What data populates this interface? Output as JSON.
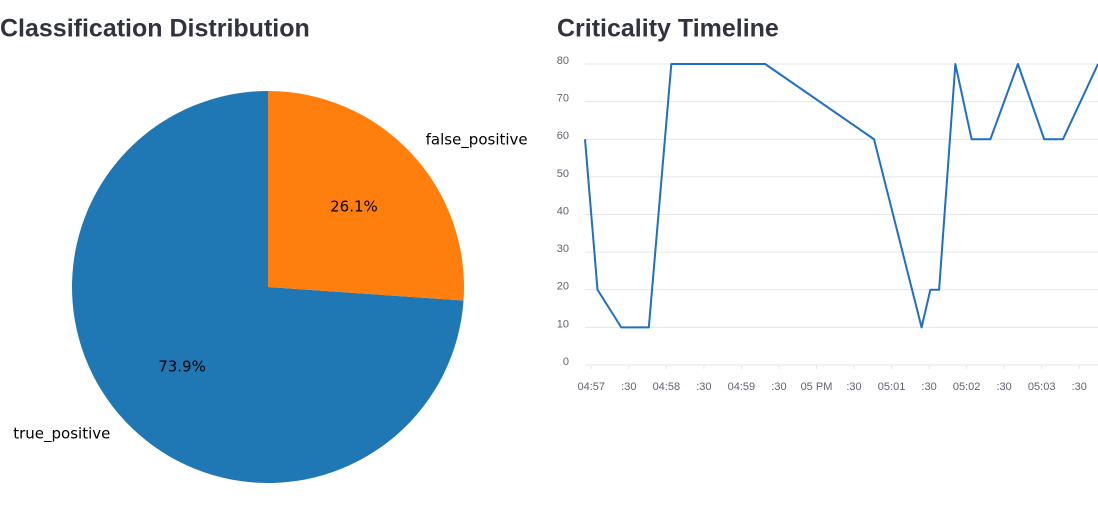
{
  "chart_data": [
    {
      "type": "pie",
      "title": "Classification Distribution",
      "categories": [
        "true_positive",
        "false_positive"
      ],
      "values": [
        73.9,
        26.1
      ],
      "value_labels": [
        "73.9%",
        "26.1%"
      ],
      "colors": [
        "#1f77b4",
        "#ff7f0e"
      ]
    },
    {
      "type": "line",
      "title": "Criticality Timeline",
      "x": [
        "16:56:55",
        "16:57:05",
        "16:57:24",
        "16:57:46",
        "16:58:04",
        "16:59:19",
        "17:00:46",
        "17:01:24",
        "17:01:31",
        "17:01:38",
        "17:01:51",
        "17:02:04",
        "17:02:19",
        "17:02:41",
        "17:03:02",
        "17:03:17",
        "17:03:45"
      ],
      "series": [
        {
          "color": "#1f6fc4",
          "values": [
            60,
            20,
            10,
            10,
            80,
            80,
            60,
            10,
            20,
            20,
            80,
            60,
            60,
            80,
            60,
            60,
            80
          ]
        }
      ],
      "xlim": [
        "16:56:55",
        "17:03:45"
      ],
      "xticks": [
        {
          "value": "16:57:00",
          "label": "04:57"
        },
        {
          "value": "16:57:30",
          "label": ":30"
        },
        {
          "value": "16:58:00",
          "label": "04:58"
        },
        {
          "value": "16:58:30",
          "label": ":30"
        },
        {
          "value": "16:59:00",
          "label": "04:59"
        },
        {
          "value": "16:59:30",
          "label": ":30"
        },
        {
          "value": "17:00:00",
          "label": "05 PM"
        },
        {
          "value": "17:00:30",
          "label": ":30"
        },
        {
          "value": "17:01:00",
          "label": "05:01"
        },
        {
          "value": "17:01:30",
          "label": ":30"
        },
        {
          "value": "17:02:00",
          "label": "05:02"
        },
        {
          "value": "17:02:30",
          "label": ":30"
        },
        {
          "value": "17:03:00",
          "label": "05:03"
        },
        {
          "value": "17:03:30",
          "label": ":30"
        }
      ],
      "ylim": [
        0,
        80
      ],
      "yticks": [
        0,
        10,
        20,
        30,
        40,
        50,
        60,
        70,
        80
      ],
      "grid": true
    }
  ]
}
